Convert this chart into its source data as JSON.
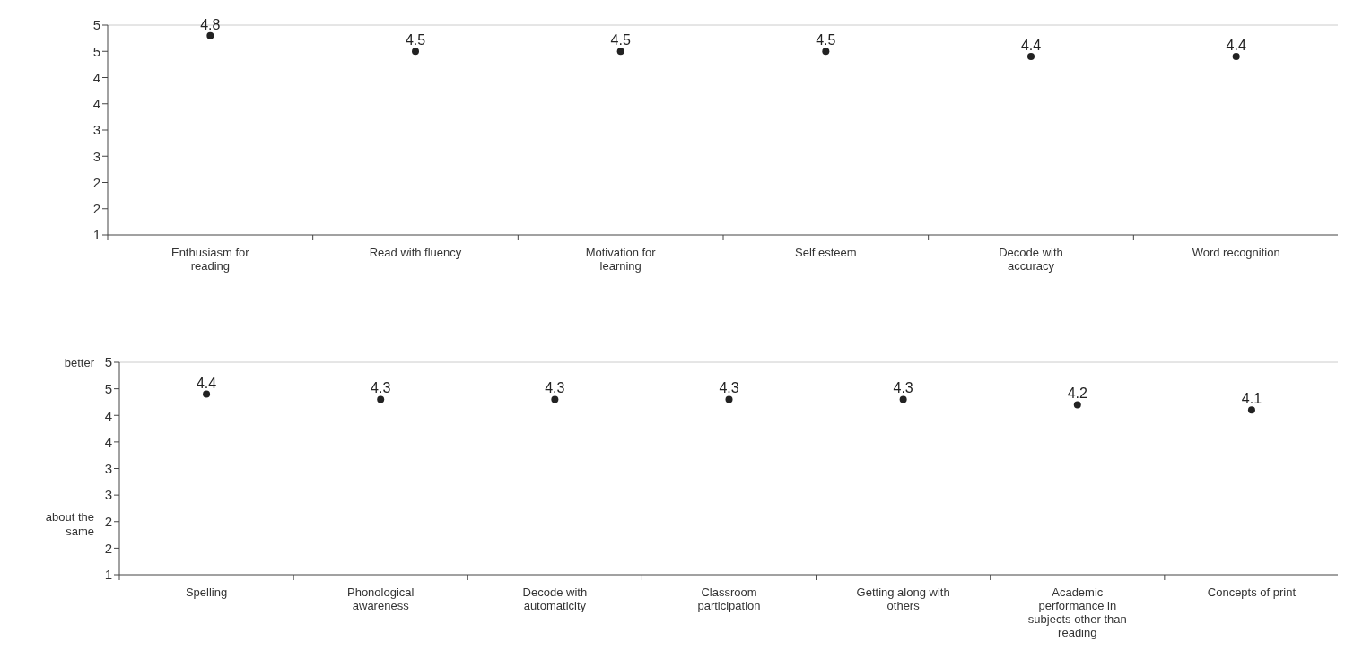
{
  "chart_data": [
    {
      "type": "scatter",
      "categories": [
        "Enthusiasm for reading",
        "Read with fluency",
        "Motivation for learning",
        "Self esteem",
        "Decode with accuracy",
        "Word recognition"
      ],
      "series": [
        {
          "color": "#222222",
          "values": [
            4.8,
            4.5,
            4.5,
            4.5,
            4.4,
            4.4
          ]
        }
      ],
      "marker": "circle",
      "data_labels": true,
      "grid": false,
      "ylim": [
        1,
        5
      ],
      "yticks": [
        1,
        {
          "value": 1.5,
          "label": "2"
        },
        2,
        {
          "value": 2.5,
          "label": "3"
        },
        3,
        {
          "value": 3.5,
          "label": "4"
        },
        4,
        {
          "value": 4.5,
          "label": "5"
        },
        5
      ]
    },
    {
      "type": "scatter",
      "categories": [
        "Spelling",
        "Phonological awareness",
        "Decode with automaticity",
        "Classroom participation",
        "Getting along with others",
        "Academic performance in subjects other than reading",
        "Concepts of print"
      ],
      "series": [
        {
          "color": "#222222",
          "values": [
            4.4,
            4.3,
            4.3,
            4.3,
            4.3,
            4.2,
            4.1
          ]
        }
      ],
      "marker": "circle",
      "data_labels": true,
      "grid": false,
      "ylim": [
        1,
        5
      ],
      "yticks": [
        1,
        {
          "value": 1.5,
          "label": "2"
        },
        2,
        {
          "value": 2.5,
          "label": "3"
        },
        3,
        {
          "value": 3.5,
          "label": "4"
        },
        4,
        {
          "value": 4.5,
          "label": "5"
        },
        5
      ],
      "annotations": [
        "better",
        "about the same"
      ]
    }
  ]
}
